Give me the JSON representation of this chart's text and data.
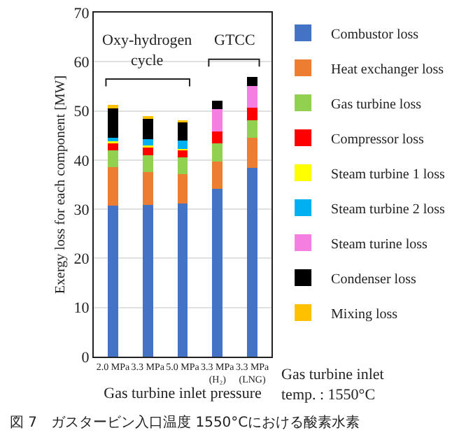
{
  "chart_data": {
    "type": "bar",
    "stacked": true,
    "ylabel": "Exergy loss for each component [MW]",
    "xlabel": "Gas turbine inlet pressure",
    "categories": [
      "2.0 MPa",
      "3.3 MPa",
      "5.0 MPa",
      "3.3 MPa\n(H₂)",
      "3.3 MPa\n(LNG)"
    ],
    "ylim": [
      0,
      70
    ],
    "yticks": [
      0,
      10,
      20,
      30,
      40,
      50,
      60,
      70
    ],
    "grid": "y",
    "legend": "right",
    "series": [
      {
        "name": "Combustor loss",
        "color": "#4472c4",
        "values": [
          30.7,
          30.9,
          31.2,
          34.2,
          38.4
        ]
      },
      {
        "name": "Heat exchanger loss",
        "color": "#ed7d31",
        "values": [
          7.9,
          6.6,
          6.0,
          5.5,
          6.2
        ]
      },
      {
        "name": "Gas turbine loss",
        "color": "#92d050",
        "values": [
          3.4,
          3.5,
          3.4,
          3.7,
          3.5
        ]
      },
      {
        "name": "Compressor loss",
        "color": "#ff0000",
        "values": [
          1.4,
          1.5,
          1.4,
          2.4,
          2.6
        ]
      },
      {
        "name": "Steam turbine 1 loss",
        "color": "#ffff00",
        "values": [
          0.4,
          0.4,
          0.3,
          0,
          0
        ]
      },
      {
        "name": "Steam turbine 2 loss",
        "color": "#00b0f0",
        "values": [
          0.8,
          1.3,
          1.6,
          0,
          0
        ]
      },
      {
        "name": "Steam turine loss",
        "color": "#f47fe0",
        "values": [
          0,
          0,
          0,
          4.5,
          4.3
        ]
      },
      {
        "name": "Condenser loss",
        "color": "#000000",
        "values": [
          5.9,
          4.2,
          3.8,
          1.8,
          1.9
        ]
      },
      {
        "name": "Mixing loss",
        "color": "#ffc000",
        "values": [
          0.7,
          0.5,
          0.4,
          0,
          0
        ]
      }
    ],
    "annotations": [
      "Oxy-hydrogen\ncycle",
      "GTCC",
      "Gas turbine inlet\ntemp. : 1550°C",
      "図 7　ガスタービン入口温度 1550°Cにおける酸素水素"
    ]
  }
}
